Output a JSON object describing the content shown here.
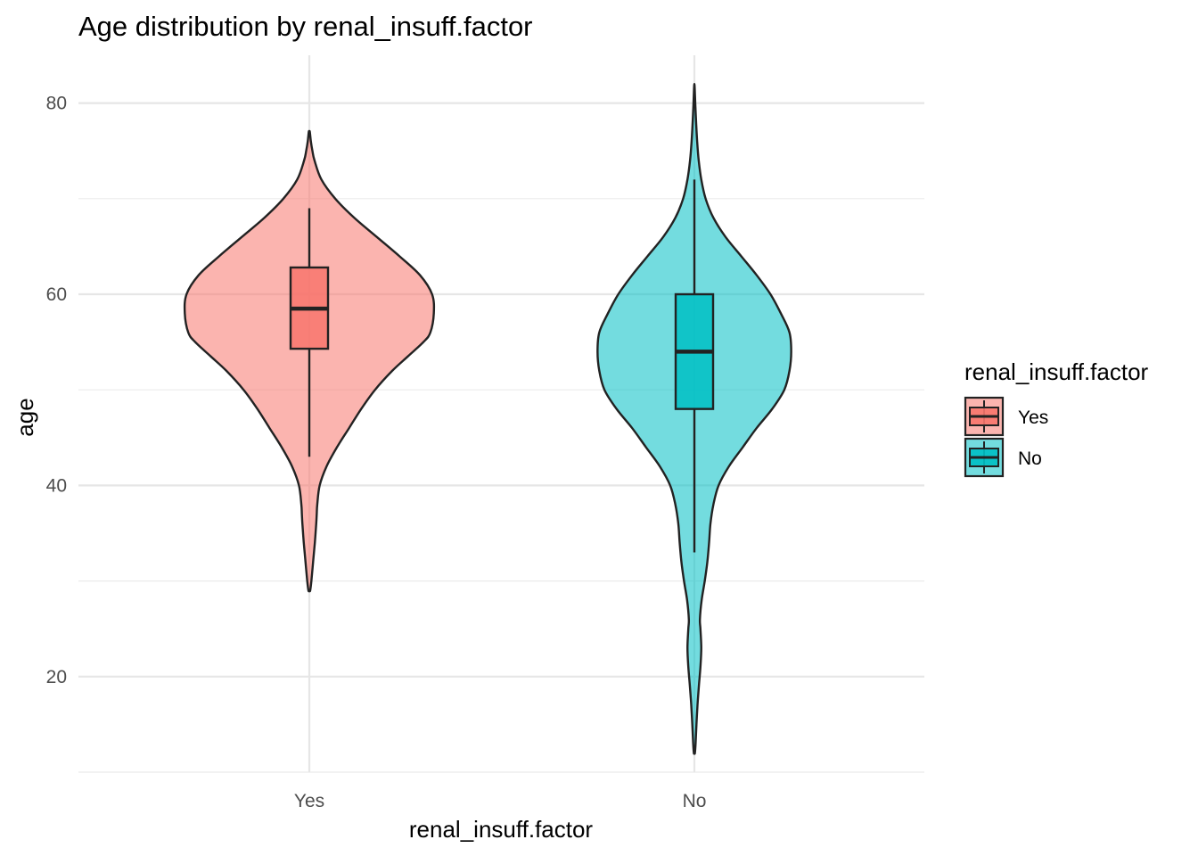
{
  "chart_data": {
    "type": "violin",
    "title": "Age distribution by renal_insuff.factor",
    "xlabel": "renal_insuff.factor",
    "ylabel": "age",
    "ylim": [
      10,
      85
    ],
    "yticks": [
      20,
      40,
      60,
      80
    ],
    "grid": true,
    "legend": {
      "title": "renal_insuff.factor",
      "position": "right",
      "entries": [
        "Yes",
        "No"
      ]
    },
    "categories": [
      "Yes",
      "No"
    ],
    "series": [
      {
        "name": "Yes",
        "color": "#F8766D",
        "min": 29,
        "max": 77,
        "box": {
          "whisker_low": 43,
          "q1": 54.3,
          "median": 58.5,
          "q3": 62.8,
          "whisker_high": 69
        },
        "density_half_width": [
          [
            29,
            0.005
          ],
          [
            30,
            0.012
          ],
          [
            32,
            0.022
          ],
          [
            34,
            0.032
          ],
          [
            36,
            0.04
          ],
          [
            37,
            0.043
          ],
          [
            38,
            0.046
          ],
          [
            40,
            0.06
          ],
          [
            42,
            0.1
          ],
          [
            44,
            0.16
          ],
          [
            46,
            0.23
          ],
          [
            48,
            0.3
          ],
          [
            50,
            0.38
          ],
          [
            52,
            0.48
          ],
          [
            53.5,
            0.57
          ],
          [
            55,
            0.66
          ],
          [
            56,
            0.7
          ],
          [
            58,
            0.72
          ],
          [
            60,
            0.71
          ],
          [
            62,
            0.64
          ],
          [
            64,
            0.52
          ],
          [
            66,
            0.39
          ],
          [
            68,
            0.26
          ],
          [
            70,
            0.15
          ],
          [
            72,
            0.07
          ],
          [
            74,
            0.03
          ],
          [
            75,
            0.018
          ],
          [
            76,
            0.009
          ],
          [
            77,
            0.003
          ]
        ]
      },
      {
        "name": "No",
        "color": "#00BFC4",
        "min": 12,
        "max": 82,
        "box": {
          "whisker_low": 33,
          "q1": 48,
          "median": 54,
          "q3": 60,
          "whisker_high": 72
        },
        "density_half_width": [
          [
            12,
            0.003
          ],
          [
            13,
            0.007
          ],
          [
            15,
            0.012
          ],
          [
            17,
            0.018
          ],
          [
            19,
            0.026
          ],
          [
            21,
            0.035
          ],
          [
            23,
            0.04
          ],
          [
            25,
            0.035
          ],
          [
            26,
            0.032
          ],
          [
            28,
            0.042
          ],
          [
            30,
            0.06
          ],
          [
            32,
            0.075
          ],
          [
            34,
            0.085
          ],
          [
            36,
            0.093
          ],
          [
            38,
            0.11
          ],
          [
            40,
            0.14
          ],
          [
            42,
            0.2
          ],
          [
            44,
            0.28
          ],
          [
            46,
            0.36
          ],
          [
            48,
            0.45
          ],
          [
            50,
            0.52
          ],
          [
            52,
            0.55
          ],
          [
            54,
            0.56
          ],
          [
            56,
            0.55
          ],
          [
            58,
            0.5
          ],
          [
            60,
            0.44
          ],
          [
            62,
            0.36
          ],
          [
            64,
            0.27
          ],
          [
            66,
            0.18
          ],
          [
            68,
            0.11
          ],
          [
            70,
            0.065
          ],
          [
            72,
            0.04
          ],
          [
            74,
            0.025
          ],
          [
            76,
            0.016
          ],
          [
            78,
            0.01
          ],
          [
            80,
            0.005
          ],
          [
            81.5,
            0.002
          ]
        ]
      }
    ]
  }
}
